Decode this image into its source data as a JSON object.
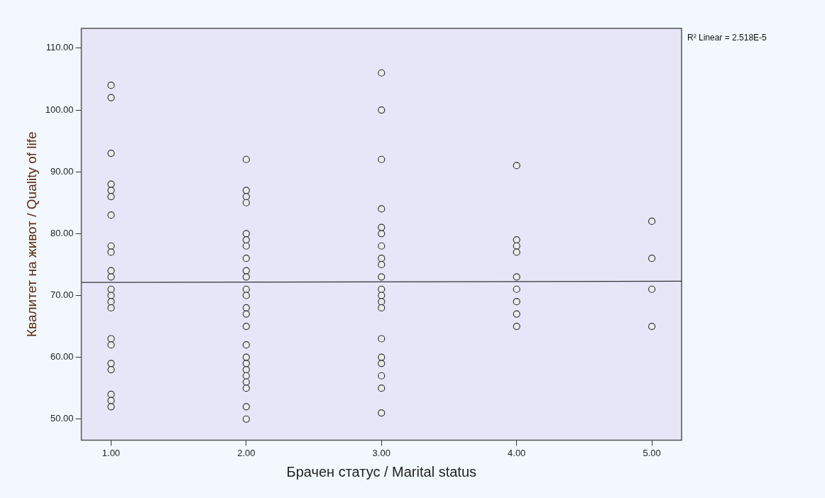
{
  "chart_data": {
    "type": "scatter",
    "xlabel": "Брачен статус / Marital status",
    "ylabel": "Квалитет на живот / Quality of life",
    "xlim": [
      0.78,
      5.22
    ],
    "xticks": [
      {
        "value": 1,
        "label": "1.00"
      },
      {
        "value": 2,
        "label": "2.00"
      },
      {
        "value": 3,
        "label": "3.00"
      },
      {
        "value": 4,
        "label": "4.00"
      },
      {
        "value": 5,
        "label": "5.00"
      }
    ],
    "ylim": [
      46.6,
      113.2
    ],
    "yticks": [
      {
        "value": 50,
        "label": "50.00"
      },
      {
        "value": 60,
        "label": "60.00"
      },
      {
        "value": 70,
        "label": "70.00"
      },
      {
        "value": 80,
        "label": "80.00"
      },
      {
        "value": 90,
        "label": "90.00"
      },
      {
        "value": 100,
        "label": "100.00"
      },
      {
        "value": 110,
        "label": "110.00"
      }
    ],
    "grid": false,
    "legend": false,
    "marker": "circle",
    "annotations": [
      "R² Linear = 2.518E-5"
    ],
    "series": [
      {
        "type": "scatter",
        "color": "#333333",
        "x": [
          1,
          1,
          1,
          1,
          1,
          1,
          1,
          1,
          1,
          1,
          1,
          1,
          1,
          1,
          1,
          1,
          1,
          1,
          1,
          1,
          1,
          1,
          2,
          2,
          2,
          2,
          2,
          2,
          2,
          2,
          2,
          2,
          2,
          2,
          2,
          2,
          2,
          2,
          2,
          2,
          2,
          2,
          2,
          2,
          2,
          2,
          3,
          3,
          3,
          3,
          3,
          3,
          3,
          3,
          3,
          3,
          3,
          3,
          3,
          3,
          3,
          3,
          3,
          3,
          3,
          3,
          4,
          4,
          4,
          4,
          4,
          4,
          4,
          4,
          4,
          5,
          5,
          5,
          5
        ],
        "values": [
          104,
          102,
          93,
          88,
          87,
          86,
          83,
          78,
          77,
          74,
          73,
          71,
          70,
          69,
          68,
          63,
          62,
          59,
          58,
          54,
          53,
          52,
          92,
          87,
          86,
          85,
          80,
          79,
          78,
          76,
          74,
          73,
          71,
          70,
          68,
          67,
          65,
          62,
          60,
          59,
          58,
          57,
          56,
          55,
          52,
          50,
          106,
          100,
          92,
          84,
          81,
          80,
          78,
          76,
          75,
          73,
          71,
          70,
          69,
          68,
          63,
          60,
          59,
          57,
          55,
          51,
          91,
          79,
          78,
          77,
          73,
          71,
          69,
          67,
          65,
          82,
          76,
          71,
          65
        ]
      },
      {
        "type": "line",
        "color": "#333333",
        "marker": "none",
        "x": [
          0.78,
          5.22
        ],
        "values": [
          72.1,
          72.3
        ]
      }
    ]
  }
}
